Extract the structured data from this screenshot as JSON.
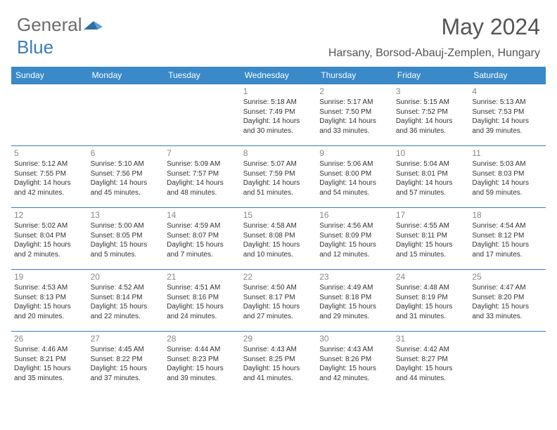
{
  "brand": {
    "part1": "General",
    "part2": "Blue"
  },
  "title": "May 2024",
  "location": "Harsany, Borsod-Abauj-Zemplen, Hungary",
  "colors": {
    "header_bg": "#3a89c9",
    "header_text": "#ffffff",
    "border": "#3a7db8",
    "body_text": "#333333",
    "daynum": "#888888",
    "title_color": "#555555"
  },
  "day_headers": [
    "Sunday",
    "Monday",
    "Tuesday",
    "Wednesday",
    "Thursday",
    "Friday",
    "Saturday"
  ],
  "weeks": [
    [
      null,
      null,
      null,
      {
        "n": "1",
        "sr": "Sunrise: 5:18 AM",
        "ss": "Sunset: 7:49 PM",
        "d1": "Daylight: 14 hours",
        "d2": "and 30 minutes."
      },
      {
        "n": "2",
        "sr": "Sunrise: 5:17 AM",
        "ss": "Sunset: 7:50 PM",
        "d1": "Daylight: 14 hours",
        "d2": "and 33 minutes."
      },
      {
        "n": "3",
        "sr": "Sunrise: 5:15 AM",
        "ss": "Sunset: 7:52 PM",
        "d1": "Daylight: 14 hours",
        "d2": "and 36 minutes."
      },
      {
        "n": "4",
        "sr": "Sunrise: 5:13 AM",
        "ss": "Sunset: 7:53 PM",
        "d1": "Daylight: 14 hours",
        "d2": "and 39 minutes."
      }
    ],
    [
      {
        "n": "5",
        "sr": "Sunrise: 5:12 AM",
        "ss": "Sunset: 7:55 PM",
        "d1": "Daylight: 14 hours",
        "d2": "and 42 minutes."
      },
      {
        "n": "6",
        "sr": "Sunrise: 5:10 AM",
        "ss": "Sunset: 7:56 PM",
        "d1": "Daylight: 14 hours",
        "d2": "and 45 minutes."
      },
      {
        "n": "7",
        "sr": "Sunrise: 5:09 AM",
        "ss": "Sunset: 7:57 PM",
        "d1": "Daylight: 14 hours",
        "d2": "and 48 minutes."
      },
      {
        "n": "8",
        "sr": "Sunrise: 5:07 AM",
        "ss": "Sunset: 7:59 PM",
        "d1": "Daylight: 14 hours",
        "d2": "and 51 minutes."
      },
      {
        "n": "9",
        "sr": "Sunrise: 5:06 AM",
        "ss": "Sunset: 8:00 PM",
        "d1": "Daylight: 14 hours",
        "d2": "and 54 minutes."
      },
      {
        "n": "10",
        "sr": "Sunrise: 5:04 AM",
        "ss": "Sunset: 8:01 PM",
        "d1": "Daylight: 14 hours",
        "d2": "and 57 minutes."
      },
      {
        "n": "11",
        "sr": "Sunrise: 5:03 AM",
        "ss": "Sunset: 8:03 PM",
        "d1": "Daylight: 14 hours",
        "d2": "and 59 minutes."
      }
    ],
    [
      {
        "n": "12",
        "sr": "Sunrise: 5:02 AM",
        "ss": "Sunset: 8:04 PM",
        "d1": "Daylight: 15 hours",
        "d2": "and 2 minutes."
      },
      {
        "n": "13",
        "sr": "Sunrise: 5:00 AM",
        "ss": "Sunset: 8:05 PM",
        "d1": "Daylight: 15 hours",
        "d2": "and 5 minutes."
      },
      {
        "n": "14",
        "sr": "Sunrise: 4:59 AM",
        "ss": "Sunset: 8:07 PM",
        "d1": "Daylight: 15 hours",
        "d2": "and 7 minutes."
      },
      {
        "n": "15",
        "sr": "Sunrise: 4:58 AM",
        "ss": "Sunset: 8:08 PM",
        "d1": "Daylight: 15 hours",
        "d2": "and 10 minutes."
      },
      {
        "n": "16",
        "sr": "Sunrise: 4:56 AM",
        "ss": "Sunset: 8:09 PM",
        "d1": "Daylight: 15 hours",
        "d2": "and 12 minutes."
      },
      {
        "n": "17",
        "sr": "Sunrise: 4:55 AM",
        "ss": "Sunset: 8:11 PM",
        "d1": "Daylight: 15 hours",
        "d2": "and 15 minutes."
      },
      {
        "n": "18",
        "sr": "Sunrise: 4:54 AM",
        "ss": "Sunset: 8:12 PM",
        "d1": "Daylight: 15 hours",
        "d2": "and 17 minutes."
      }
    ],
    [
      {
        "n": "19",
        "sr": "Sunrise: 4:53 AM",
        "ss": "Sunset: 8:13 PM",
        "d1": "Daylight: 15 hours",
        "d2": "and 20 minutes."
      },
      {
        "n": "20",
        "sr": "Sunrise: 4:52 AM",
        "ss": "Sunset: 8:14 PM",
        "d1": "Daylight: 15 hours",
        "d2": "and 22 minutes."
      },
      {
        "n": "21",
        "sr": "Sunrise: 4:51 AM",
        "ss": "Sunset: 8:16 PM",
        "d1": "Daylight: 15 hours",
        "d2": "and 24 minutes."
      },
      {
        "n": "22",
        "sr": "Sunrise: 4:50 AM",
        "ss": "Sunset: 8:17 PM",
        "d1": "Daylight: 15 hours",
        "d2": "and 27 minutes."
      },
      {
        "n": "23",
        "sr": "Sunrise: 4:49 AM",
        "ss": "Sunset: 8:18 PM",
        "d1": "Daylight: 15 hours",
        "d2": "and 29 minutes."
      },
      {
        "n": "24",
        "sr": "Sunrise: 4:48 AM",
        "ss": "Sunset: 8:19 PM",
        "d1": "Daylight: 15 hours",
        "d2": "and 31 minutes."
      },
      {
        "n": "25",
        "sr": "Sunrise: 4:47 AM",
        "ss": "Sunset: 8:20 PM",
        "d1": "Daylight: 15 hours",
        "d2": "and 33 minutes."
      }
    ],
    [
      {
        "n": "26",
        "sr": "Sunrise: 4:46 AM",
        "ss": "Sunset: 8:21 PM",
        "d1": "Daylight: 15 hours",
        "d2": "and 35 minutes."
      },
      {
        "n": "27",
        "sr": "Sunrise: 4:45 AM",
        "ss": "Sunset: 8:22 PM",
        "d1": "Daylight: 15 hours",
        "d2": "and 37 minutes."
      },
      {
        "n": "28",
        "sr": "Sunrise: 4:44 AM",
        "ss": "Sunset: 8:23 PM",
        "d1": "Daylight: 15 hours",
        "d2": "and 39 minutes."
      },
      {
        "n": "29",
        "sr": "Sunrise: 4:43 AM",
        "ss": "Sunset: 8:25 PM",
        "d1": "Daylight: 15 hours",
        "d2": "and 41 minutes."
      },
      {
        "n": "30",
        "sr": "Sunrise: 4:43 AM",
        "ss": "Sunset: 8:26 PM",
        "d1": "Daylight: 15 hours",
        "d2": "and 42 minutes."
      },
      {
        "n": "31",
        "sr": "Sunrise: 4:42 AM",
        "ss": "Sunset: 8:27 PM",
        "d1": "Daylight: 15 hours",
        "d2": "and 44 minutes."
      },
      null
    ]
  ]
}
